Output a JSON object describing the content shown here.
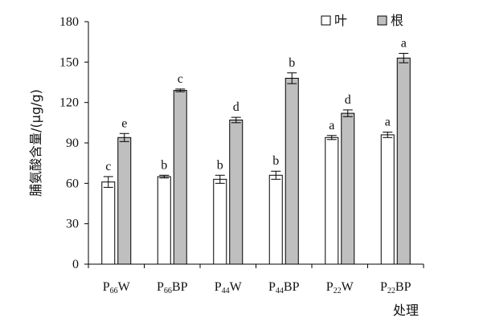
{
  "chart_data": {
    "type": "bar",
    "categories": [
      {
        "base": "P",
        "sub": "66",
        "rest": "W"
      },
      {
        "base": "P",
        "sub": "66",
        "rest": "BP"
      },
      {
        "base": "P",
        "sub": "44",
        "rest": "W"
      },
      {
        "base": "P",
        "sub": "44",
        "rest": "BP"
      },
      {
        "base": "P",
        "sub": "22",
        "rest": "W"
      },
      {
        "base": "P",
        "sub": "22",
        "rest": "BP"
      }
    ],
    "series": [
      {
        "name": "叶",
        "color": "#ffffff",
        "values": [
          61,
          65,
          63,
          66,
          94,
          96
        ],
        "errors": [
          4,
          1,
          3,
          3,
          1.5,
          2
        ],
        "letters": [
          "c",
          "b",
          "b",
          "b",
          "a",
          "a"
        ]
      },
      {
        "name": "根",
        "color": "#bfbfbf",
        "values": [
          94,
          129,
          107,
          138,
          112,
          153
        ],
        "errors": [
          3,
          1,
          2,
          4,
          2.5,
          3.5
        ],
        "letters": [
          "e",
          "c",
          "d",
          "b",
          "d",
          "a"
        ]
      }
    ],
    "xlabel": "处理",
    "ylabel": "脯氨酸含量/(μg/g)",
    "ylim": [
      0,
      180
    ],
    "yticks": [
      0,
      30,
      60,
      90,
      120,
      150,
      180
    ],
    "legend_position": "top-right",
    "grid": false
  }
}
